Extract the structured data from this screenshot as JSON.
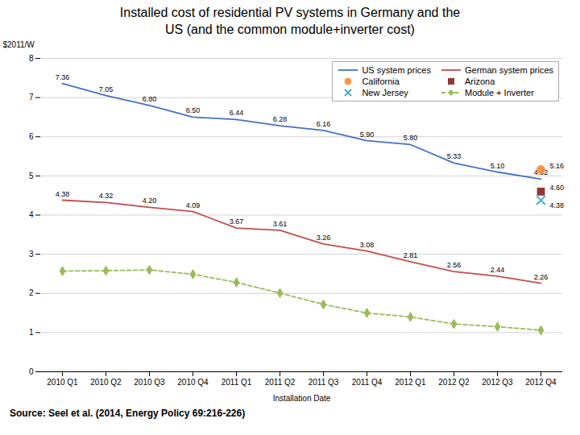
{
  "chart_data": {
    "type": "line",
    "title": "Installed cost of residential PV systems in Germany and the",
    "subtitle": "US (and the common module+inverter cost)",
    "xlabel": "Installation Date",
    "ylabel": "$2011/W",
    "caption": "Source: Seel et al. (2014, Energy Policy 69:216-226)",
    "categories": [
      "2010 Q1",
      "2010 Q2",
      "2010 Q3",
      "2010 Q4",
      "2011 Q1",
      "2011 Q2",
      "2011 Q3",
      "2011 Q4",
      "2012 Q1",
      "2012 Q2",
      "2012 Q3",
      "2012 Q4"
    ],
    "series": [
      {
        "name": "US system prices",
        "type": "line",
        "color": "#4472C4",
        "line_style": "solid",
        "marker": "none",
        "data_labels": true,
        "values": [
          7.36,
          7.05,
          6.8,
          6.5,
          6.44,
          6.28,
          6.16,
          5.9,
          5.8,
          5.33,
          5.1,
          4.92
        ],
        "value_labels": [
          "7.36",
          "7.05",
          "6.80",
          "6.50",
          "6.44",
          "6.28",
          "6.16",
          "5.90",
          "5.80",
          "5.33",
          "5.10",
          "4.92"
        ]
      },
      {
        "name": "German system prices",
        "type": "line",
        "color": "#C0504D",
        "line_style": "solid",
        "marker": "none",
        "data_labels": true,
        "values": [
          4.38,
          4.32,
          4.2,
          4.09,
          3.67,
          3.61,
          3.26,
          3.08,
          2.81,
          2.56,
          2.44,
          2.26
        ],
        "value_labels": [
          "4.38",
          "4.32",
          "4.20",
          "4.09",
          "3.67",
          "3.61",
          "3.26",
          "3.08",
          "2.81",
          "2.56",
          "2.44",
          "2.26"
        ]
      },
      {
        "name": "California",
        "type": "scatter",
        "color": "#F79646",
        "marker": "circle",
        "data_labels": true,
        "values": [
          null,
          null,
          null,
          null,
          null,
          null,
          null,
          null,
          null,
          null,
          null,
          5.16
        ],
        "value_labels": [
          null,
          null,
          null,
          null,
          null,
          null,
          null,
          null,
          null,
          null,
          null,
          "5.16"
        ]
      },
      {
        "name": "Arizona",
        "type": "scatter",
        "color": "#943634",
        "marker": "square",
        "data_labels": true,
        "values": [
          null,
          null,
          null,
          null,
          null,
          null,
          null,
          null,
          null,
          null,
          null,
          4.6
        ],
        "value_labels": [
          null,
          null,
          null,
          null,
          null,
          null,
          null,
          null,
          null,
          null,
          null,
          "4.60"
        ]
      },
      {
        "name": "New Jersey",
        "type": "scatter",
        "color": "#4BACC6",
        "marker": "x",
        "data_labels": true,
        "values": [
          null,
          null,
          null,
          null,
          null,
          null,
          null,
          null,
          null,
          null,
          null,
          4.38
        ],
        "value_labels": [
          null,
          null,
          null,
          null,
          null,
          null,
          null,
          null,
          null,
          null,
          null,
          "4.38"
        ]
      },
      {
        "name": "Module + Inverter",
        "type": "line",
        "color": "#9BBB59",
        "line_style": "dashed",
        "marker": "diamond",
        "data_labels": false,
        "values": [
          2.57,
          2.58,
          2.6,
          2.49,
          2.28,
          2.01,
          1.72,
          1.5,
          1.4,
          1.22,
          1.15,
          1.06
        ]
      }
    ],
    "ylim": [
      0,
      8
    ],
    "yticks": [
      0,
      1,
      2,
      3,
      4,
      5,
      6,
      7,
      8
    ],
    "grid": true,
    "legend": "upper right"
  }
}
